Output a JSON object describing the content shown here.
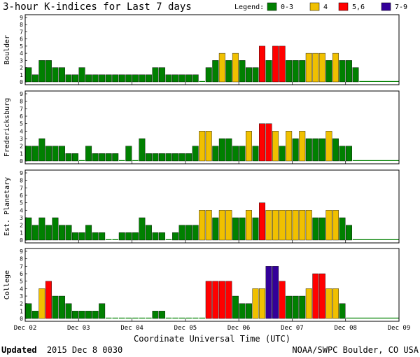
{
  "chart_data": {
    "type": "bar",
    "title": "3-hour K-indices for Last 7 days",
    "legend": {
      "label": "Legend:",
      "entries": [
        {
          "label": "0-3",
          "color": "#008000"
        },
        {
          "label": "4",
          "color": "#f0c000"
        },
        {
          "label": "5,6",
          "color": "#ff0000"
        },
        {
          "label": "7-9",
          "color": "#330099"
        }
      ]
    },
    "xlabel": "Coordinate Universal Time (UTC)",
    "x_ticks": [
      "Dec 02",
      "Dec 03",
      "Dec 04",
      "Dec 05",
      "Dec 06",
      "Dec 07",
      "Dec 08",
      "Dec 09"
    ],
    "y_ticks": [
      "0",
      "1",
      "2",
      "3",
      "4",
      "5",
      "6",
      "7",
      "8",
      "9"
    ],
    "ylim": [
      0,
      9
    ],
    "bins_per_day": 8,
    "grid": false,
    "panels": [
      {
        "name": "Boulder",
        "values": [
          2,
          1,
          3,
          3,
          2,
          2,
          1,
          1,
          2,
          1,
          1,
          1,
          1,
          1,
          1,
          1,
          1,
          1,
          1,
          2,
          2,
          1,
          1,
          1,
          1,
          1,
          0,
          2,
          3,
          4,
          3,
          4,
          3,
          2,
          2,
          5,
          3,
          5,
          5,
          3,
          3,
          3,
          4,
          4,
          4,
          3,
          4,
          3,
          3,
          2
        ]
      },
      {
        "name": "Fredericksburg",
        "values": [
          2,
          2,
          3,
          2,
          2,
          2,
          1,
          1,
          0,
          2,
          1,
          1,
          1,
          1,
          0,
          2,
          0,
          3,
          1,
          1,
          1,
          1,
          1,
          1,
          1,
          2,
          4,
          4,
          2,
          3,
          3,
          2,
          2,
          4,
          2,
          5,
          5,
          4,
          2,
          4,
          3,
          4,
          3,
          3,
          3,
          4,
          3,
          2,
          2
        ]
      },
      {
        "name": "Est. Planetary",
        "values": [
          3,
          2,
          3,
          2,
          3,
          2,
          2,
          1,
          1,
          2,
          1,
          1,
          0,
          0,
          1,
          1,
          1,
          3,
          2,
          1,
          1,
          0,
          1,
          2,
          2,
          2,
          4,
          4,
          3,
          4,
          4,
          3,
          3,
          4,
          3,
          5,
          4,
          4,
          4,
          4,
          4,
          4,
          4,
          3,
          3,
          4,
          4,
          3,
          2
        ]
      },
      {
        "name": "College",
        "values": [
          2,
          1,
          4,
          5,
          3,
          3,
          2,
          1,
          1,
          1,
          1,
          2,
          0,
          0,
          0,
          0,
          0,
          0,
          0,
          1,
          1,
          0,
          0,
          0,
          0,
          0,
          0,
          5,
          5,
          5,
          5,
          3,
          2,
          2,
          4,
          4,
          7,
          7,
          5,
          3,
          3,
          3,
          4,
          6,
          6,
          4,
          4,
          2
        ]
      }
    ]
  },
  "footer": {
    "updated_label": "Updated",
    "updated_value": "2015 Dec  8 0030",
    "credit": "NOAA/SWPC Boulder, CO USA"
  }
}
